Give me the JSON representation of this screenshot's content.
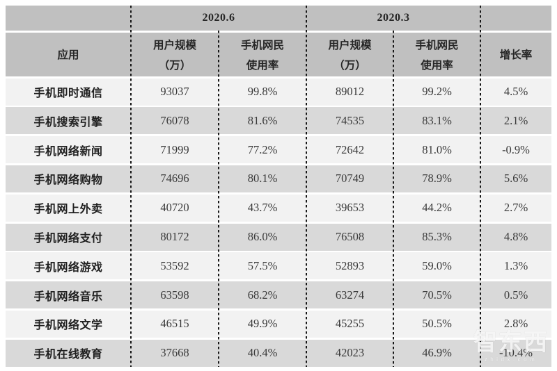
{
  "header": {
    "app": "应用",
    "periods": [
      "2020.6",
      "2020.3"
    ],
    "user_scale": [
      "用户规模",
      "（万）"
    ],
    "usage_rate": [
      "手机网民",
      "使用率"
    ],
    "growth": "增长率"
  },
  "watermark": {
    "logo": "智东西",
    "domain": "zhidx.com"
  },
  "colors": {
    "header_bg": "#c0c0c0",
    "row_light": "#f2f2f2",
    "row_dark": "#d9d9d9",
    "separator": "#161616",
    "text": "#262626"
  },
  "chart_data": {
    "type": "table",
    "title": "",
    "column_groups": [
      "",
      "2020.6",
      "2020.3",
      ""
    ],
    "columns": [
      "应用",
      "2020.6 用户规模（万）",
      "2020.6 手机网民使用率",
      "2020.3 用户规模（万）",
      "2020.3 手机网民使用率",
      "增长率"
    ],
    "rows": [
      [
        "手机即时通信",
        "93037",
        "99.8%",
        "89012",
        "99.2%",
        "4.5%"
      ],
      [
        "手机搜索引擎",
        "76078",
        "81.6%",
        "74535",
        "83.1%",
        "2.1%"
      ],
      [
        "手机网络新闻",
        "71999",
        "77.2%",
        "72642",
        "81.0%",
        "-0.9%"
      ],
      [
        "手机网络购物",
        "74696",
        "80.1%",
        "70749",
        "78.9%",
        "5.6%"
      ],
      [
        "手机网上外卖",
        "40720",
        "43.7%",
        "39653",
        "44.2%",
        "2.7%"
      ],
      [
        "手机网络支付",
        "80172",
        "86.0%",
        "76508",
        "85.3%",
        "4.8%"
      ],
      [
        "手机网络游戏",
        "53592",
        "57.5%",
        "52893",
        "59.0%",
        "1.3%"
      ],
      [
        "手机网络音乐",
        "63598",
        "68.2%",
        "63274",
        "70.5%",
        "0.5%"
      ],
      [
        "手机网络文学",
        "46515",
        "49.9%",
        "45255",
        "50.5%",
        "2.8%"
      ],
      [
        "手机在线教育",
        "37668",
        "40.4%",
        "42023",
        "46.9%",
        "-10.4%"
      ]
    ]
  }
}
